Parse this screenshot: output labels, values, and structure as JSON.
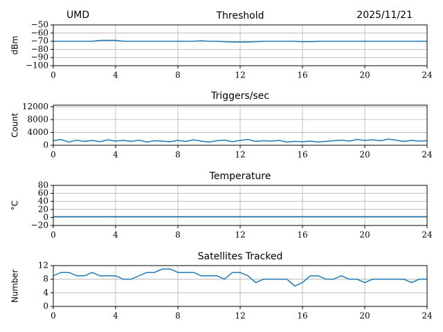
{
  "header": {
    "left": "UMD",
    "right": "2025/11/21"
  },
  "chart_data": [
    {
      "type": "line",
      "title": "Threshold",
      "y_label": "dBm",
      "grid": true,
      "x": [
        0,
        0.5,
        1,
        1.5,
        2,
        2.5,
        3,
        3.5,
        4,
        4.5,
        5,
        5.5,
        6,
        6.5,
        7,
        7.5,
        8,
        8.5,
        9,
        9.5,
        10,
        10.5,
        11,
        11.5,
        12,
        12.5,
        13,
        13.5,
        14,
        14.5,
        15,
        15.5,
        16,
        16.5,
        17,
        17.5,
        18,
        18.5,
        19,
        19.5,
        20,
        20.5,
        21,
        21.5,
        22,
        22.5,
        23,
        23.5,
        24
      ],
      "xlim": [
        0,
        24
      ],
      "xticks": [
        0,
        4,
        8,
        12,
        16,
        20,
        24
      ],
      "ylim": [
        -100,
        -50
      ],
      "yticks": [
        {
          "value": -100,
          "label": "−100"
        },
        {
          "value": -90,
          "label": "−90"
        },
        {
          "value": -80,
          "label": "−80"
        },
        {
          "value": -70,
          "label": "−70"
        },
        {
          "value": -60,
          "label": "−60"
        },
        {
          "value": -50,
          "label": "−50"
        }
      ],
      "series": [
        {
          "color": "#1f77b4",
          "values": [
            -70,
            -70,
            -70,
            -70,
            -70,
            -70,
            -69,
            -69,
            -69,
            -70,
            -70,
            -70,
            -70,
            -70,
            -70,
            -70,
            -70,
            -70,
            -70,
            -69.5,
            -70,
            -70,
            -70.5,
            -71,
            -71,
            -71,
            -70.5,
            -70,
            -70,
            -70,
            -70,
            -70,
            -70.5,
            -70.5,
            -70,
            -70,
            -70,
            -70,
            -70,
            -70,
            -70,
            -70,
            -70,
            -70,
            -70,
            -70,
            -70,
            -70,
            -70
          ]
        }
      ]
    },
    {
      "type": "line",
      "title": "Triggers/sec",
      "y_label": "Count",
      "grid": true,
      "x": [
        0,
        0.5,
        1,
        1.5,
        2,
        2.5,
        3,
        3.5,
        4,
        4.5,
        5,
        5.5,
        6,
        6.5,
        7,
        7.5,
        8,
        8.5,
        9,
        9.5,
        10,
        10.5,
        11,
        11.5,
        12,
        12.5,
        13,
        13.5,
        14,
        14.5,
        15,
        15.5,
        16,
        16.5,
        17,
        17.5,
        18,
        18.5,
        19,
        19.5,
        20,
        20.5,
        21,
        21.5,
        22,
        22.5,
        23,
        23.5,
        24
      ],
      "xlim": [
        0,
        24
      ],
      "xticks": [
        0,
        4,
        8,
        12,
        16,
        20,
        24
      ],
      "ylim": [
        0,
        12500
      ],
      "yticks": [
        0,
        4000,
        8000,
        12000
      ],
      "series": [
        {
          "color": "#1f77b4",
          "values": [
            1400,
            1800,
            1000,
            1600,
            1200,
            1500,
            1100,
            1700,
            1300,
            1500,
            1200,
            1600,
            1000,
            1400,
            1300,
            1100,
            1500,
            1200,
            1700,
            1300,
            1000,
            1400,
            1600,
            1100,
            1500,
            1800,
            1200,
            1400,
            1300,
            1500,
            1000,
            1200,
            1100,
            1300,
            1000,
            1200,
            1400,
            1600,
            1300,
            1800,
            1500,
            1700,
            1400,
            1900,
            1600,
            1200,
            1500,
            1300,
            1400
          ]
        }
      ]
    },
    {
      "type": "line",
      "title": "Temperature",
      "y_label": "°C",
      "grid": true,
      "x": [
        0,
        0.5,
        1,
        1.5,
        2,
        2.5,
        3,
        3.5,
        4,
        4.5,
        5,
        5.5,
        6,
        6.5,
        7,
        7.5,
        8,
        8.5,
        9,
        9.5,
        10,
        10.5,
        11,
        11.5,
        12,
        12.5,
        13,
        13.5,
        14,
        14.5,
        15,
        15.5,
        16,
        16.5,
        17,
        17.5,
        18,
        18.5,
        19,
        19.5,
        20,
        20.5,
        21,
        21.5,
        22,
        22.5,
        23,
        23.5,
        24
      ],
      "xlim": [
        0,
        24
      ],
      "xticks": [
        0,
        4,
        8,
        12,
        16,
        20,
        24
      ],
      "ylim": [
        -20,
        80
      ],
      "yticks": [
        {
          "value": -20,
          "label": "−20"
        },
        0,
        20,
        40,
        60,
        80
      ],
      "series": [
        {
          "color": "#1f77b4",
          "values": [
            2,
            2,
            2,
            2,
            2,
            2,
            2,
            2,
            2,
            2,
            2,
            2,
            2,
            2,
            2,
            2,
            2,
            2,
            2,
            2,
            2,
            2,
            2,
            2,
            2,
            2,
            2,
            2,
            2,
            2,
            2,
            2,
            2,
            2,
            2,
            2,
            2,
            2,
            2,
            2,
            2,
            2,
            2,
            2,
            2,
            2,
            2,
            2,
            2
          ]
        }
      ]
    },
    {
      "type": "line",
      "title": "Satellites Tracked",
      "y_label": "Number",
      "grid": true,
      "x": [
        0,
        0.5,
        1,
        1.5,
        2,
        2.5,
        3,
        3.5,
        4,
        4.5,
        5,
        5.5,
        6,
        6.5,
        7,
        7.5,
        8,
        8.5,
        9,
        9.5,
        10,
        10.5,
        11,
        11.5,
        12,
        12.5,
        13,
        13.5,
        14,
        14.5,
        15,
        15.5,
        16,
        16.5,
        17,
        17.5,
        18,
        18.5,
        19,
        19.5,
        20,
        20.5,
        21,
        21.5,
        22,
        22.5,
        23,
        23.5,
        24
      ],
      "xlim": [
        0,
        24
      ],
      "xticks": [
        0,
        4,
        8,
        12,
        16,
        20,
        24
      ],
      "ylim": [
        0,
        12
      ],
      "yticks": [
        0,
        4,
        8,
        12
      ],
      "series": [
        {
          "color": "#1f77b4",
          "values": [
            9,
            10,
            10,
            9,
            9,
            10,
            9,
            9,
            9,
            8,
            8,
            9,
            10,
            10,
            11,
            11,
            10,
            10,
            10,
            9,
            9,
            9,
            8,
            10,
            10,
            9,
            7,
            8,
            8,
            8,
            8,
            6,
            7,
            9,
            9,
            8,
            8,
            9,
            8,
            8,
            7,
            8,
            8,
            8,
            8,
            8,
            7,
            8,
            8
          ]
        }
      ]
    }
  ]
}
